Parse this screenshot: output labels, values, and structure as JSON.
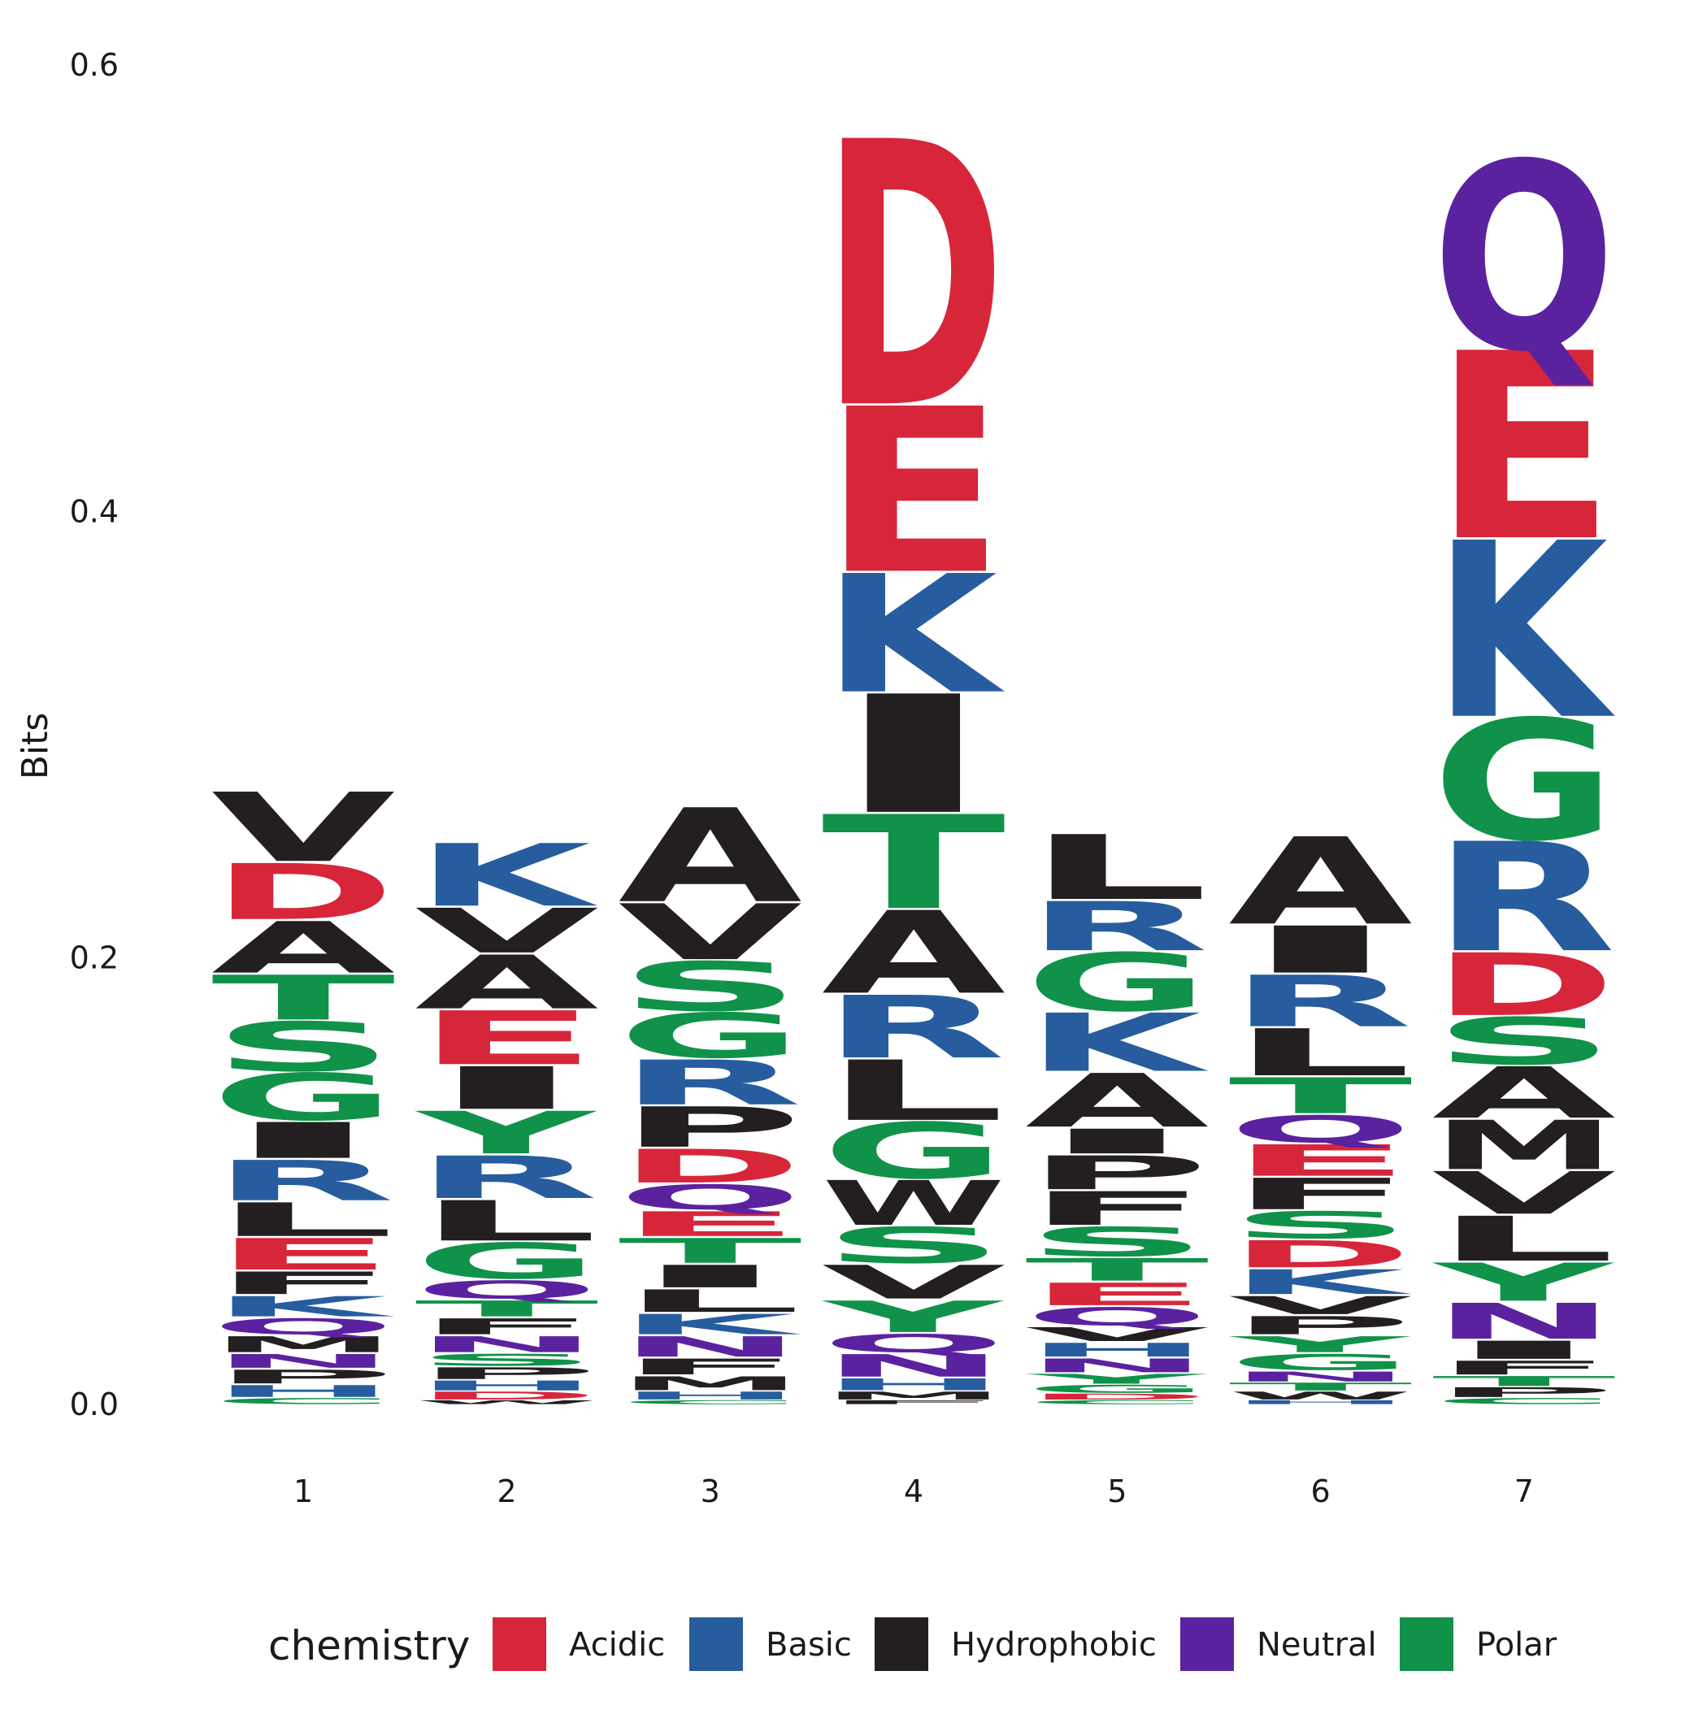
{
  "chart_data": {
    "type": "sequence-logo",
    "ylabel": "Bits",
    "ylim": [
      0,
      0.6
    ],
    "yticks": [
      "0.0",
      "0.2",
      "0.4",
      "0.6"
    ],
    "positions": [
      "1",
      "2",
      "3",
      "4",
      "5",
      "6",
      "7"
    ],
    "legend": {
      "title": "chemistry",
      "placement": "bottom",
      "items": [
        {
          "label": "Acidic",
          "color": "#D7263A"
        },
        {
          "label": "Basic",
          "color": "#275D9E"
        },
        {
          "label": "Hydrophobic",
          "color": "#231F20"
        },
        {
          "label": "Neutral",
          "color": "#5B22A0"
        },
        {
          "label": "Polar",
          "color": "#11924A"
        }
      ]
    },
    "stacks": [
      {
        "position": "1",
        "letters": [
          {
            "aa": "C",
            "bits": 0.003
          },
          {
            "aa": "H",
            "bits": 0.006
          },
          {
            "aa": "P",
            "bits": 0.007
          },
          {
            "aa": "N",
            "bits": 0.007
          },
          {
            "aa": "M",
            "bits": 0.008
          },
          {
            "aa": "Q",
            "bits": 0.008
          },
          {
            "aa": "K",
            "bits": 0.01
          },
          {
            "aa": "F",
            "bits": 0.011
          },
          {
            "aa": "E",
            "bits": 0.015
          },
          {
            "aa": "L",
            "bits": 0.016
          },
          {
            "aa": "R",
            "bits": 0.019
          },
          {
            "aa": "I",
            "bits": 0.017
          },
          {
            "aa": "G",
            "bits": 0.022
          },
          {
            "aa": "S",
            "bits": 0.023
          },
          {
            "aa": "T",
            "bits": 0.021
          },
          {
            "aa": "A",
            "bits": 0.024
          },
          {
            "aa": "D",
            "bits": 0.026
          },
          {
            "aa": "V",
            "bits": 0.032
          }
        ]
      },
      {
        "position": "2",
        "letters": [
          {
            "aa": "W",
            "bits": 0.002
          },
          {
            "aa": "D",
            "bits": 0.004
          },
          {
            "aa": "H",
            "bits": 0.005
          },
          {
            "aa": "P",
            "bits": 0.006
          },
          {
            "aa": "S",
            "bits": 0.006
          },
          {
            "aa": "N",
            "bits": 0.008
          },
          {
            "aa": "F",
            "bits": 0.008
          },
          {
            "aa": "T",
            "bits": 0.008
          },
          {
            "aa": "Q",
            "bits": 0.009
          },
          {
            "aa": "G",
            "bits": 0.017
          },
          {
            "aa": "L",
            "bits": 0.019
          },
          {
            "aa": "R",
            "bits": 0.02
          },
          {
            "aa": "Y",
            "bits": 0.02
          },
          {
            "aa": "I",
            "bits": 0.02
          },
          {
            "aa": "E",
            "bits": 0.025
          },
          {
            "aa": "A",
            "bits": 0.025
          },
          {
            "aa": "V",
            "bits": 0.021
          },
          {
            "aa": "K",
            "bits": 0.029
          }
        ]
      },
      {
        "position": "3",
        "letters": [
          {
            "aa": "C",
            "bits": 0.002
          },
          {
            "aa": "H",
            "bits": 0.004
          },
          {
            "aa": "M",
            "bits": 0.007
          },
          {
            "aa": "F",
            "bits": 0.008
          },
          {
            "aa": "N",
            "bits": 0.01
          },
          {
            "aa": "K",
            "bits": 0.01
          },
          {
            "aa": "L",
            "bits": 0.011
          },
          {
            "aa": "I",
            "bits": 0.011
          },
          {
            "aa": "T",
            "bits": 0.012
          },
          {
            "aa": "E",
            "bits": 0.012
          },
          {
            "aa": "Q",
            "bits": 0.012
          },
          {
            "aa": "D",
            "bits": 0.016
          },
          {
            "aa": "P",
            "bits": 0.019
          },
          {
            "aa": "R",
            "bits": 0.021
          },
          {
            "aa": "G",
            "bits": 0.021
          },
          {
            "aa": "S",
            "bits": 0.023
          },
          {
            "aa": "V",
            "bits": 0.026
          },
          {
            "aa": "A",
            "bits": 0.043
          }
        ]
      },
      {
        "position": "4",
        "letters": [
          {
            "aa": "F",
            "bits": 0.002
          },
          {
            "aa": "M",
            "bits": 0.004
          },
          {
            "aa": "H",
            "bits": 0.006
          },
          {
            "aa": "N",
            "bits": 0.011
          },
          {
            "aa": "Q",
            "bits": 0.009
          },
          {
            "aa": "Y",
            "bits": 0.015
          },
          {
            "aa": "V",
            "bits": 0.016
          },
          {
            "aa": "S",
            "bits": 0.017
          },
          {
            "aa": "W",
            "bits": 0.021
          },
          {
            "aa": "G",
            "bits": 0.026
          },
          {
            "aa": "L",
            "bits": 0.028
          },
          {
            "aa": "R",
            "bits": 0.029
          },
          {
            "aa": "A",
            "bits": 0.038
          },
          {
            "aa": "T",
            "bits": 0.043
          },
          {
            "aa": "I",
            "bits": 0.054
          },
          {
            "aa": "K",
            "bits": 0.054
          },
          {
            "aa": "E",
            "bits": 0.075
          },
          {
            "aa": "D",
            "bits": 0.12
          }
        ]
      },
      {
        "position": "5",
        "letters": [
          {
            "aa": "C",
            "bits": 0.002
          },
          {
            "aa": "D",
            "bits": 0.003
          },
          {
            "aa": "G",
            "bits": 0.004
          },
          {
            "aa": "Y",
            "bits": 0.005
          },
          {
            "aa": "N",
            "bits": 0.007
          },
          {
            "aa": "H",
            "bits": 0.007
          },
          {
            "aa": "V",
            "bits": 0.007
          },
          {
            "aa": "Q",
            "bits": 0.009
          },
          {
            "aa": "E",
            "bits": 0.011
          },
          {
            "aa": "T",
            "bits": 0.011
          },
          {
            "aa": "S",
            "bits": 0.014
          },
          {
            "aa": "F",
            "bits": 0.016
          },
          {
            "aa": "P",
            "bits": 0.016
          },
          {
            "aa": "I",
            "bits": 0.012
          },
          {
            "aa": "A",
            "bits": 0.025
          },
          {
            "aa": "K",
            "bits": 0.027
          },
          {
            "aa": "G",
            "bits": 0.027
          },
          {
            "aa": "R",
            "bits": 0.023
          },
          {
            "aa": "L",
            "bits": 0.03
          }
        ]
      },
      {
        "position": "6",
        "letters": [
          {
            "aa": "H",
            "bits": 0.002
          },
          {
            "aa": "W",
            "bits": 0.004
          },
          {
            "aa": "T",
            "bits": 0.004
          },
          {
            "aa": "N",
            "bits": 0.005
          },
          {
            "aa": "G",
            "bits": 0.008
          },
          {
            "aa": "Y",
            "bits": 0.008
          },
          {
            "aa": "P",
            "bits": 0.009
          },
          {
            "aa": "V",
            "bits": 0.009
          },
          {
            "aa": "K",
            "bits": 0.012
          },
          {
            "aa": "D",
            "bits": 0.013
          },
          {
            "aa": "S",
            "bits": 0.013
          },
          {
            "aa": "F",
            "bits": 0.015
          },
          {
            "aa": "E",
            "bits": 0.015
          },
          {
            "aa": "Q",
            "bits": 0.013
          },
          {
            "aa": "T",
            "bits": 0.017
          },
          {
            "aa": "L",
            "bits": 0.022
          },
          {
            "aa": "R",
            "bits": 0.024
          },
          {
            "aa": "I",
            "bits": 0.022
          },
          {
            "aa": "A",
            "bits": 0.04
          }
        ]
      },
      {
        "position": "7",
        "letters": [
          {
            "aa": "C",
            "bits": 0.003
          },
          {
            "aa": "P",
            "bits": 0.005
          },
          {
            "aa": "T",
            "bits": 0.005
          },
          {
            "aa": "F",
            "bits": 0.007
          },
          {
            "aa": "I",
            "bits": 0.009
          },
          {
            "aa": "N",
            "bits": 0.017
          },
          {
            "aa": "Y",
            "bits": 0.018
          },
          {
            "aa": "L",
            "bits": 0.021
          },
          {
            "aa": "V",
            "bits": 0.02
          },
          {
            "aa": "M",
            "bits": 0.023
          },
          {
            "aa": "A",
            "bits": 0.024
          },
          {
            "aa": "S",
            "bits": 0.022
          },
          {
            "aa": "D",
            "bits": 0.029
          },
          {
            "aa": "R",
            "bits": 0.05
          },
          {
            "aa": "G",
            "bits": 0.055
          },
          {
            "aa": "K",
            "bits": 0.08
          },
          {
            "aa": "E",
            "bits": 0.085
          },
          {
            "aa": "Q",
            "bits": 0.085
          }
        ]
      }
    ]
  },
  "chemistry_groups": {
    "Acidic": [
      "D",
      "E"
    ],
    "Basic": [
      "K",
      "R",
      "H"
    ],
    "Hydrophobic": [
      "A",
      "V",
      "L",
      "I",
      "P",
      "W",
      "F",
      "M"
    ],
    "Neutral": [
      "Q",
      "N"
    ],
    "Polar": [
      "G",
      "S",
      "T",
      "Y",
      "C"
    ]
  }
}
